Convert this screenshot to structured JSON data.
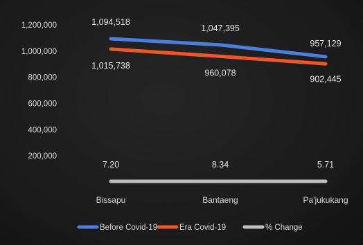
{
  "chart_data": {
    "type": "line",
    "categories": [
      "Bissapu",
      "Bantaeng",
      "Pa'jukukang"
    ],
    "series": [
      {
        "name": "Before Covid-19",
        "values": [
          1094518,
          1047395,
          957129
        ],
        "labels": [
          "1,094,518",
          "1,047,395",
          "957,129"
        ],
        "color": "#4a7fe0"
      },
      {
        "name": "Era Covid-19",
        "values": [
          1015738,
          960078,
          902445
        ],
        "labels": [
          "1,015,738",
          "960,078",
          "902,445"
        ],
        "color": "#f0562a"
      },
      {
        "name": "% Change",
        "values": [
          7.2,
          8.34,
          5.71
        ],
        "labels": [
          "7.20",
          "8.34",
          "5.71"
        ],
        "color": "#bfbfbf"
      }
    ],
    "y_ticks": [
      "1,200,000",
      "1,000,000",
      "800,000",
      "600,000",
      "400,000",
      "200,000"
    ],
    "ylim": [
      0,
      1200000
    ],
    "grid": false,
    "legend_position": "bottom"
  }
}
